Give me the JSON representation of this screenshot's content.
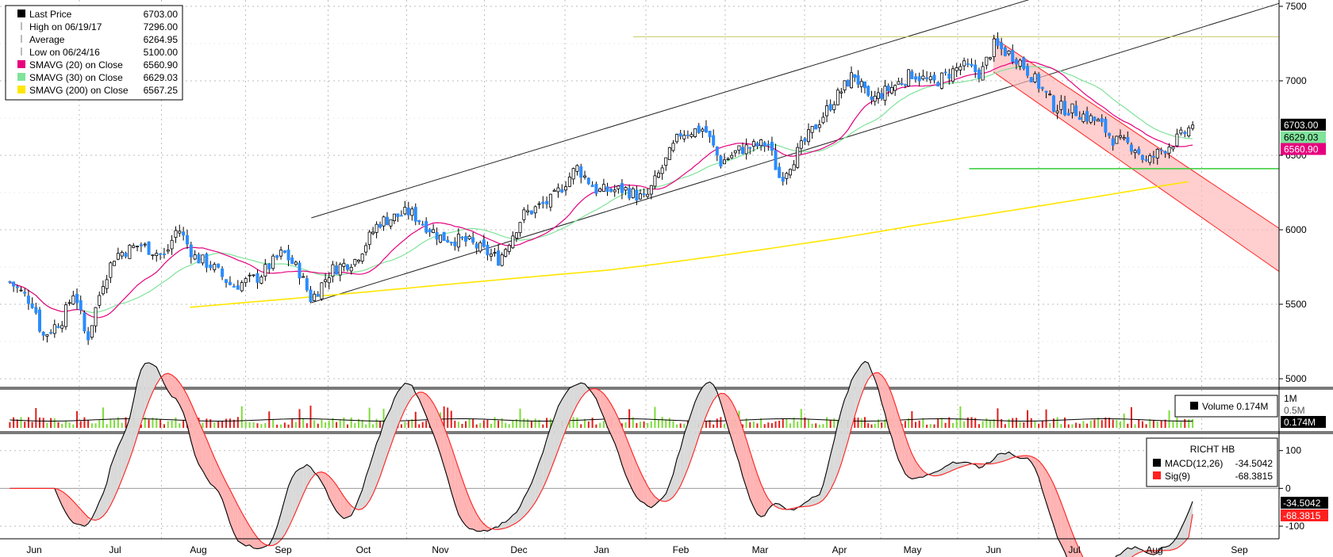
{
  "chart_data": {
    "type": "candlestick",
    "title": "",
    "x_months": [
      "Jun",
      "Jul",
      "Aug",
      "Sep",
      "Oct",
      "Nov",
      "Dec",
      "Jan",
      "Feb",
      "Mar",
      "Apr",
      "May",
      "Jun",
      "Jul",
      "Aug",
      "Sep"
    ],
    "price_axis": {
      "ticks": [
        "7500",
        "7000",
        "6500",
        "6000",
        "5500",
        "5000"
      ],
      "ylim": [
        4950,
        7550
      ]
    },
    "legend": {
      "items": [
        {
          "label": "Last Price",
          "value": "6703.00",
          "color": "#000000"
        },
        {
          "label": "High on 06/19/17",
          "value": "7296.00",
          "color": "#777777"
        },
        {
          "label": "Average",
          "value": "6264.95",
          "color": "#777777"
        },
        {
          "label": "Low on 06/24/16",
          "value": "5100.00",
          "color": "#777777"
        },
        {
          "label": "SMAVG (20) on Close",
          "value": "6560.90",
          "color": "#e6007e"
        },
        {
          "label": "SMAVG (30) on Close",
          "value": "6629.03",
          "color": "#7fe39a"
        },
        {
          "label": "SMAVG (200) on Close",
          "value": "6567.25",
          "color": "#ffe600"
        }
      ]
    },
    "price_tags": [
      {
        "value": "6703.00",
        "bg": "#000000",
        "fg": "#ffffff"
      },
      {
        "value": "6629.03",
        "bg": "#7fe39a",
        "fg": "#000000"
      },
      {
        "value": "6560.90",
        "bg": "#e6007e",
        "fg": "#ffffff"
      }
    ],
    "levels": {
      "high": 7296,
      "low": 5100,
      "support": 6410
    },
    "channel_up": {
      "start": {
        "x": 0.24,
        "y": 5510
      },
      "slope_per_month": 174,
      "width": 530
    },
    "channel_down": {
      "start_y": 7290,
      "end_y_top": 6010,
      "end_y_bottom": 5720
    },
    "anchors": [
      {
        "month": -0.3,
        "price": 5650
      },
      {
        "month": 0.0,
        "price": 5500
      },
      {
        "month": 0.1,
        "price": 5280
      },
      {
        "month": 0.35,
        "price": 5400
      },
      {
        "month": 0.5,
        "price": 5600
      },
      {
        "month": 0.65,
        "price": 5250
      },
      {
        "month": 0.85,
        "price": 5650
      },
      {
        "month": 1.0,
        "price": 5830
      },
      {
        "month": 1.3,
        "price": 5900
      },
      {
        "month": 1.6,
        "price": 5820
      },
      {
        "month": 1.75,
        "price": 6020
      },
      {
        "month": 1.95,
        "price": 5820
      },
      {
        "month": 2.15,
        "price": 5760
      },
      {
        "month": 2.4,
        "price": 5620
      },
      {
        "month": 2.7,
        "price": 5680
      },
      {
        "month": 3.0,
        "price": 5850
      },
      {
        "month": 3.2,
        "price": 5720
      },
      {
        "month": 3.35,
        "price": 5530
      },
      {
        "month": 3.6,
        "price": 5730
      },
      {
        "month": 3.9,
        "price": 5800
      },
      {
        "month": 4.2,
        "price": 6050
      },
      {
        "month": 4.6,
        "price": 6120
      },
      {
        "month": 5.0,
        "price": 5950
      },
      {
        "month": 5.35,
        "price": 5920
      },
      {
        "month": 5.75,
        "price": 5800
      },
      {
        "month": 6.05,
        "price": 6100
      },
      {
        "month": 6.4,
        "price": 6200
      },
      {
        "month": 6.7,
        "price": 6420
      },
      {
        "month": 6.95,
        "price": 6260
      },
      {
        "month": 7.3,
        "price": 6270
      },
      {
        "month": 7.55,
        "price": 6200
      },
      {
        "month": 7.75,
        "price": 6400
      },
      {
        "month": 8.0,
        "price": 6650
      },
      {
        "month": 8.3,
        "price": 6680
      },
      {
        "month": 8.5,
        "price": 6450
      },
      {
        "month": 8.75,
        "price": 6540
      },
      {
        "month": 9.1,
        "price": 6580
      },
      {
        "month": 9.25,
        "price": 6340
      },
      {
        "month": 9.6,
        "price": 6620
      },
      {
        "month": 9.9,
        "price": 6850
      },
      {
        "month": 10.2,
        "price": 7050
      },
      {
        "month": 10.4,
        "price": 6860
      },
      {
        "month": 10.7,
        "price": 6950
      },
      {
        "month": 11.0,
        "price": 7050
      },
      {
        "month": 11.25,
        "price": 6980
      },
      {
        "month": 11.6,
        "price": 7100
      },
      {
        "month": 11.85,
        "price": 7050
      },
      {
        "month": 12.0,
        "price": 7240
      },
      {
        "month": 12.3,
        "price": 7150
      },
      {
        "month": 12.55,
        "price": 6980
      },
      {
        "month": 12.75,
        "price": 6830
      },
      {
        "month": 13.0,
        "price": 6800
      },
      {
        "month": 13.3,
        "price": 6720
      },
      {
        "month": 13.5,
        "price": 6600
      },
      {
        "month": 13.75,
        "price": 6560
      },
      {
        "month": 13.9,
        "price": 6450
      },
      {
        "month": 14.05,
        "price": 6520
      },
      {
        "month": 14.3,
        "price": 6620
      },
      {
        "month": 14.45,
        "price": 6703
      }
    ],
    "volume_panel": {
      "axis_ticks": [
        "1M",
        "0.5M"
      ],
      "legend": "Volume 0.174M",
      "tag": "0.174M"
    },
    "macd_panel": {
      "title": "RICHT HB",
      "axis_ticks": [
        "100",
        "0",
        "-100"
      ],
      "ylim": [
        -125,
        135
      ],
      "legend": [
        {
          "label": "MACD(12,26)",
          "value": "-34.5042",
          "color": "#000000"
        },
        {
          "label": "Sig(9)",
          "value": "-68.3815",
          "color": "#ff2020"
        }
      ],
      "tags": [
        {
          "value": "-34.5042",
          "bg": "#000000",
          "fg": "#ffffff"
        },
        {
          "value": "-68.3815",
          "bg": "#ff2020",
          "fg": "#ffffff"
        }
      ]
    }
  }
}
